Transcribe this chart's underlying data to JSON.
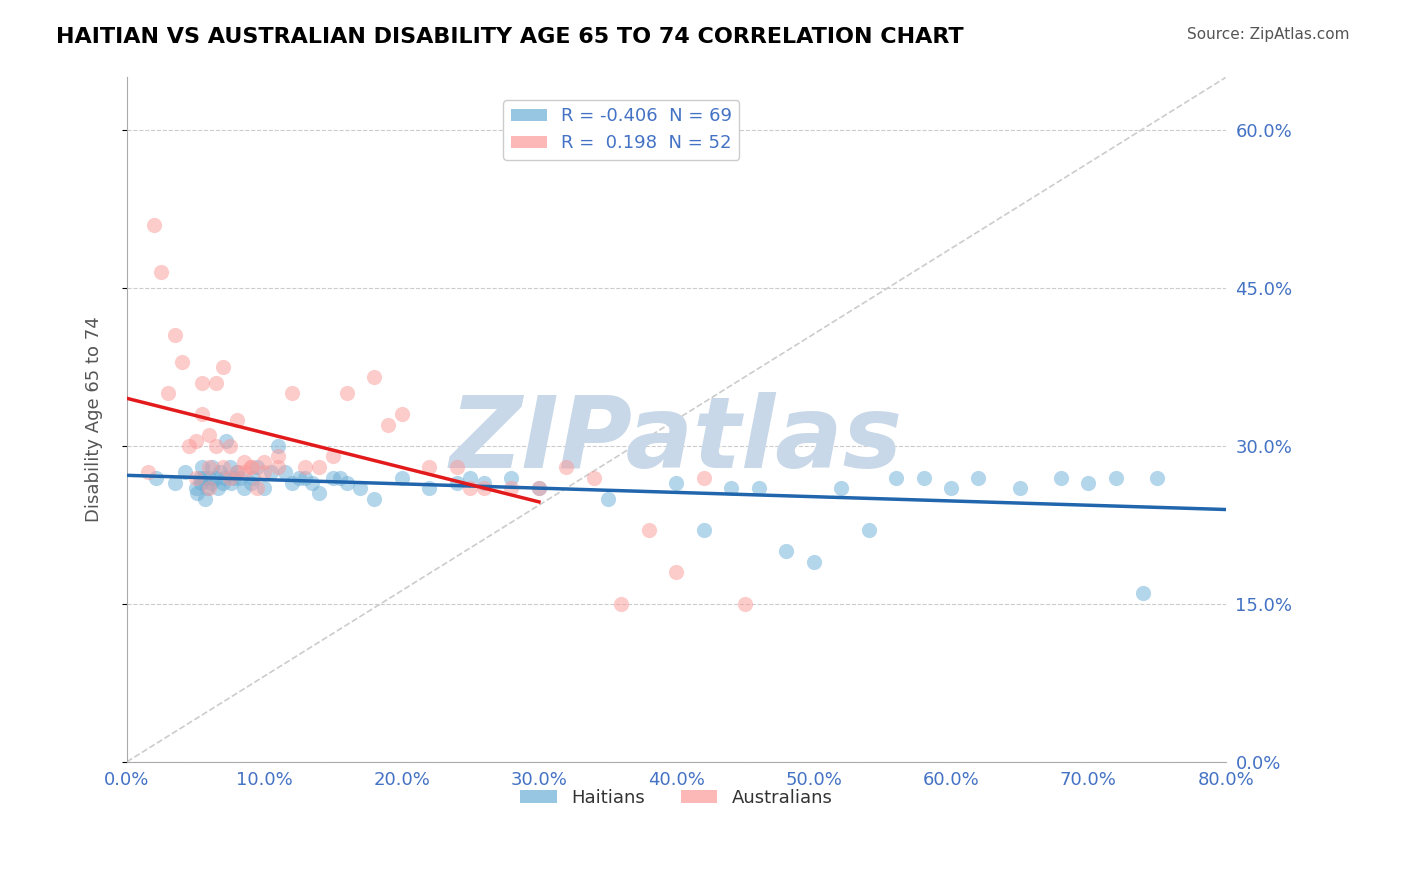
{
  "title": "HAITIAN VS AUSTRALIAN DISABILITY AGE 65 TO 74 CORRELATION CHART",
  "source": "Source: ZipAtlas.com",
  "xlabel_ticks": [
    0.0,
    10.0,
    20.0,
    30.0,
    40.0,
    50.0,
    60.0,
    70.0,
    80.0
  ],
  "ylabel_ticks": [
    0.0,
    15.0,
    30.0,
    45.0,
    60.0
  ],
  "xlim": [
    0.0,
    80.0
  ],
  "ylim": [
    0.0,
    65.0
  ],
  "ylabel": "Disability Age 65 to 74",
  "haitian_R": -0.406,
  "haitian_N": 69,
  "australian_R": 0.198,
  "australian_N": 52,
  "haitian_color": "#6baed6",
  "australian_color": "#fb9a99",
  "haitian_line_color": "#2166ac",
  "australian_line_color": "#e31a1c",
  "watermark": "ZIPatlas",
  "watermark_color": "#c8d8e8",
  "background_color": "#ffffff",
  "grid_color": "#cccccc",
  "tick_color": "#4472c4",
  "title_color": "#000000",
  "haitian_x": [
    2.1,
    3.5,
    4.2,
    5.0,
    5.1,
    5.3,
    5.4,
    5.5,
    5.6,
    5.7,
    5.8,
    6.0,
    6.1,
    6.2,
    6.5,
    6.6,
    6.8,
    7.0,
    7.1,
    7.2,
    7.5,
    7.6,
    7.8,
    8.0,
    8.2,
    8.5,
    9.0,
    9.2,
    9.5,
    10.0,
    10.5,
    11.0,
    11.5,
    12.0,
    12.5,
    13.0,
    13.5,
    14.0,
    15.0,
    15.5,
    16.0,
    17.0,
    18.0,
    20.0,
    22.0,
    24.0,
    25.0,
    26.0,
    28.0,
    30.0,
    35.0,
    40.0,
    42.0,
    44.0,
    46.0,
    48.0,
    50.0,
    52.0,
    54.0,
    56.0,
    58.0,
    60.0,
    62.0,
    65.0,
    68.0,
    70.0,
    72.0,
    74.0,
    75.0
  ],
  "haitian_y": [
    27.0,
    26.5,
    27.5,
    26.0,
    25.5,
    27.0,
    26.5,
    28.0,
    27.0,
    25.0,
    26.0,
    27.0,
    26.5,
    28.0,
    27.0,
    26.0,
    27.5,
    26.5,
    27.0,
    30.5,
    28.0,
    26.5,
    27.0,
    27.5,
    27.0,
    26.0,
    26.5,
    27.0,
    28.0,
    26.0,
    27.5,
    30.0,
    27.5,
    26.5,
    27.0,
    27.0,
    26.5,
    25.5,
    27.0,
    27.0,
    26.5,
    26.0,
    25.0,
    27.0,
    26.0,
    26.5,
    27.0,
    26.5,
    27.0,
    26.0,
    25.0,
    26.5,
    22.0,
    26.0,
    26.0,
    20.0,
    19.0,
    26.0,
    22.0,
    27.0,
    27.0,
    26.0,
    27.0,
    26.0,
    27.0,
    26.5,
    27.0,
    16.0,
    27.0
  ],
  "australian_x": [
    1.5,
    2.0,
    2.5,
    3.0,
    3.5,
    4.0,
    4.5,
    5.0,
    5.0,
    5.5,
    5.5,
    6.0,
    6.0,
    6.0,
    6.5,
    6.5,
    7.0,
    7.0,
    7.5,
    7.5,
    8.0,
    8.0,
    8.5,
    8.5,
    9.0,
    9.0,
    9.5,
    10.0,
    10.0,
    11.0,
    11.0,
    12.0,
    13.0,
    14.0,
    15.0,
    16.0,
    18.0,
    19.0,
    20.0,
    22.0,
    24.0,
    25.0,
    26.0,
    28.0,
    30.0,
    32.0,
    34.0,
    36.0,
    38.0,
    40.0,
    42.0,
    45.0
  ],
  "australian_y": [
    27.5,
    51.0,
    46.5,
    35.0,
    40.5,
    38.0,
    30.0,
    27.0,
    30.5,
    33.0,
    36.0,
    28.0,
    31.0,
    26.0,
    36.0,
    30.0,
    37.5,
    28.0,
    30.0,
    27.0,
    32.5,
    27.5,
    28.5,
    27.5,
    28.0,
    28.0,
    26.0,
    27.5,
    28.5,
    29.0,
    28.0,
    35.0,
    28.0,
    28.0,
    29.0,
    35.0,
    36.5,
    32.0,
    33.0,
    28.0,
    28.0,
    26.0,
    26.0,
    26.0,
    26.0,
    28.0,
    27.0,
    15.0,
    22.0,
    18.0,
    27.0,
    15.0
  ]
}
